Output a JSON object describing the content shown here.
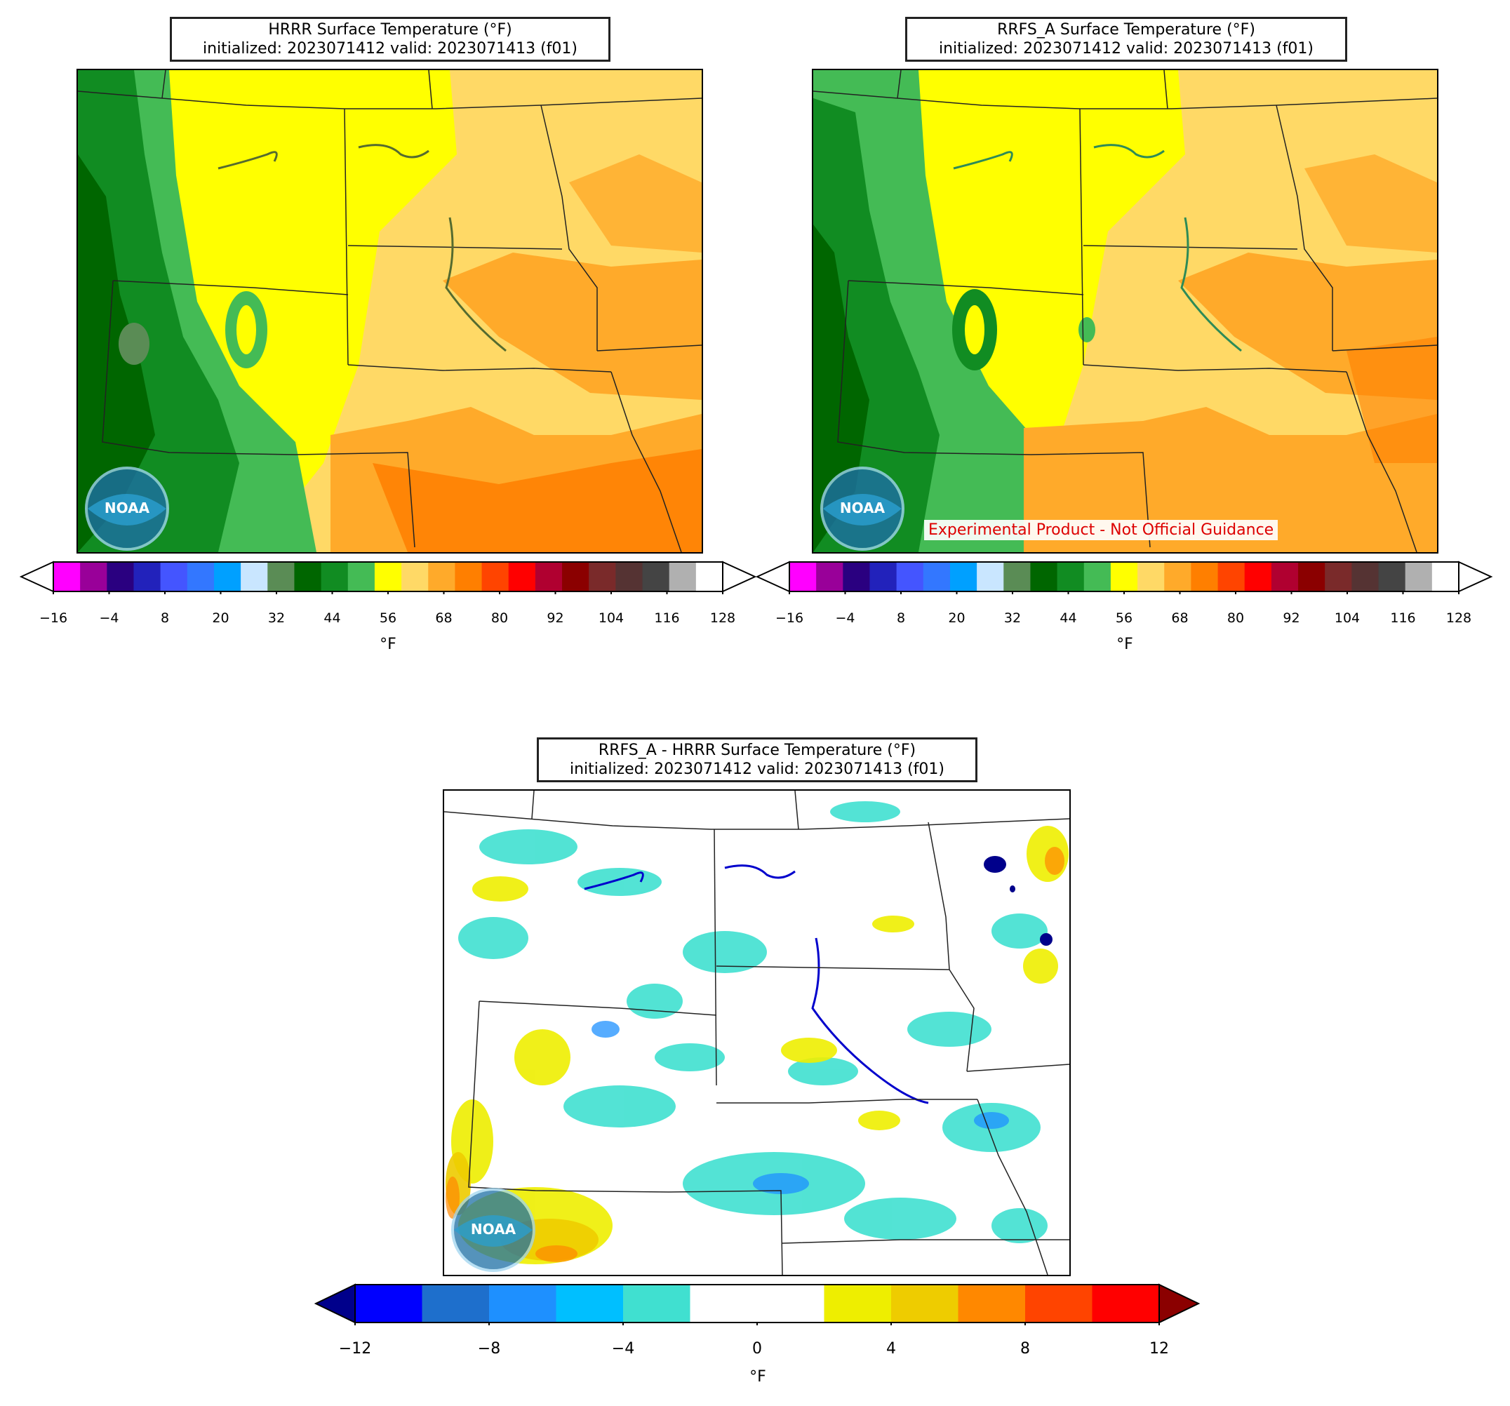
{
  "panels": {
    "hrrr": {
      "title_line1": "HRRR Surface Temperature (°F)",
      "title_line2": "initialized: 2023071412 valid: 2023071413 (f01)"
    },
    "rrfs": {
      "title_line1": "RRFS_A Surface Temperature (°F)",
      "title_line2": "initialized: 2023071412 valid: 2023071413 (f01)",
      "disclaimer": "Experimental Product - Not Official Guidance"
    },
    "diff": {
      "title_line1": "RRFS_A - HRRR Surface Temperature (°F)",
      "title_line2": "initialized: 2023071412 valid: 2023071413 (f01)"
    }
  },
  "temp_colorbar": {
    "unit": "°F",
    "ticks": [
      "−16",
      "−4",
      "8",
      "20",
      "32",
      "44",
      "56",
      "68",
      "80",
      "92",
      "104",
      "116",
      "128"
    ],
    "colors": [
      "#ff00ff",
      "#990099",
      "#2a0080",
      "#2222bb",
      "#4455ff",
      "#3377ff",
      "#00a0ff",
      "#c9e6ff",
      "#5a8c55",
      "#006600",
      "#118c22",
      "#44bb55",
      "#ffff00",
      "#ffd966",
      "#ffaa2a",
      "#ff7f00",
      "#ff4400",
      "#ff0000",
      "#b00030",
      "#8b0000",
      "#7a2a2a",
      "#553333",
      "#444444",
      "#b0b0b0",
      "#ffffff"
    ],
    "under_color": "#ffffff",
    "over_color": "#ffffff"
  },
  "diff_colorbar": {
    "unit": "°F",
    "ticks": [
      "−12",
      "−8",
      "−4",
      "0",
      "4",
      "8",
      "12"
    ],
    "colors": [
      "#0000ff",
      "#1e6fcc",
      "#1e90ff",
      "#00bfff",
      "#40e0d0",
      "#ffffff",
      "#ffffff",
      "#eeee00",
      "#eecc00",
      "#ff8800",
      "#ff4400",
      "#ff0000"
    ],
    "under_color": "#00008b",
    "over_color": "#8b0000"
  },
  "logo": {
    "text": "NOAA",
    "icon": "noaa-logo-icon"
  }
}
